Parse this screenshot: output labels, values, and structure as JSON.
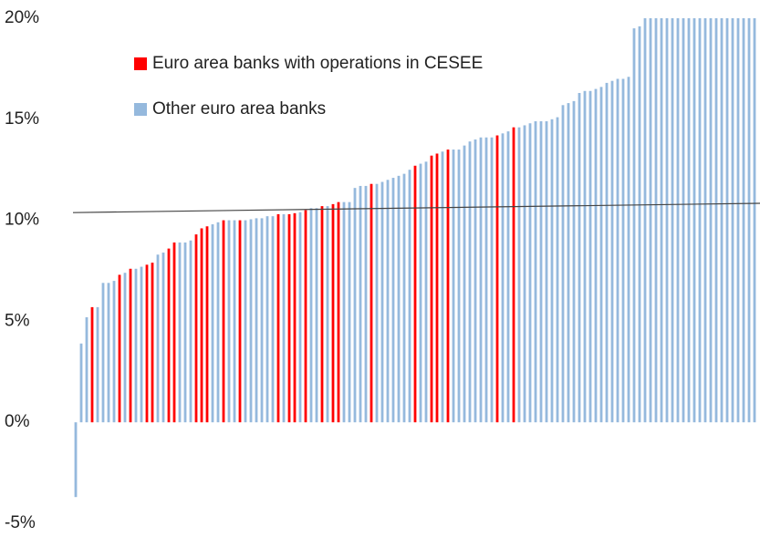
{
  "chart_data": {
    "type": "bar",
    "categories": [
      null,
      null,
      null,
      null,
      null,
      null,
      null,
      null,
      null,
      null,
      null,
      null,
      null,
      null,
      null,
      null,
      null,
      null,
      null,
      null,
      null,
      null,
      null,
      null,
      null,
      null,
      null,
      null,
      null,
      null,
      null,
      null,
      null,
      null,
      null,
      null,
      null,
      null,
      null,
      null,
      null,
      null,
      null,
      null,
      null,
      null,
      null,
      null,
      null,
      null,
      null,
      null,
      null,
      null,
      null,
      null,
      null,
      null,
      null,
      null,
      null,
      null,
      null,
      null,
      null,
      null,
      null,
      null,
      null,
      null,
      null,
      null,
      null,
      null,
      null,
      null,
      null,
      null,
      null,
      null,
      null,
      null,
      null,
      null,
      null,
      null,
      null,
      null,
      null,
      null,
      null,
      null,
      null,
      null,
      null,
      null,
      null,
      null,
      null,
      null,
      null,
      null,
      null,
      null,
      null,
      null,
      null,
      null,
      null,
      null,
      null,
      null,
      null,
      null,
      null,
      null,
      null,
      null,
      null,
      null,
      null,
      null,
      null,
      null,
      null
    ],
    "series": [
      {
        "name": "Euro area banks with operations in CESEE",
        "color": "#ff0000",
        "values": [
          null,
          null,
          null,
          5.7,
          null,
          null,
          null,
          null,
          7.3,
          null,
          7.6,
          null,
          null,
          7.8,
          7.9,
          null,
          null,
          8.6,
          8.9,
          null,
          null,
          null,
          9.3,
          9.6,
          9.7,
          null,
          null,
          10.0,
          null,
          null,
          10.0,
          null,
          null,
          null,
          null,
          null,
          null,
          10.3,
          null,
          10.3,
          10.35,
          null,
          10.5,
          null,
          null,
          10.7,
          null,
          10.8,
          10.9,
          null,
          null,
          null,
          null,
          null,
          11.8,
          null,
          null,
          null,
          null,
          null,
          null,
          null,
          12.7,
          null,
          null,
          13.2,
          13.3,
          null,
          13.5,
          null,
          null,
          null,
          null,
          null,
          null,
          null,
          null,
          14.2,
          null,
          null,
          14.6,
          null,
          null,
          null,
          null,
          null,
          null,
          null,
          null,
          null,
          null,
          null,
          null,
          null,
          null,
          null,
          null,
          null,
          null,
          null,
          null,
          null,
          null,
          null,
          null,
          null,
          null,
          null,
          null,
          null,
          null,
          null,
          null,
          null,
          null,
          null,
          null,
          null,
          null,
          null,
          null,
          null,
          null,
          null,
          null
        ]
      },
      {
        "name": "Other euro area banks",
        "color": "#95b9dd",
        "values": [
          -3.7,
          3.9,
          5.2,
          null,
          5.7,
          6.9,
          6.9,
          7.0,
          null,
          7.4,
          null,
          7.6,
          7.7,
          null,
          null,
          8.3,
          8.4,
          null,
          null,
          8.9,
          8.9,
          9.0,
          null,
          null,
          null,
          9.8,
          9.9,
          null,
          10.0,
          10.0,
          null,
          10.0,
          10.05,
          10.1,
          10.1,
          10.2,
          10.2,
          null,
          10.3,
          null,
          null,
          10.4,
          null,
          10.6,
          10.6,
          null,
          10.7,
          null,
          null,
          10.9,
          10.9,
          11.6,
          11.7,
          11.7,
          null,
          11.8,
          11.9,
          12.0,
          12.1,
          12.2,
          12.3,
          12.5,
          null,
          12.8,
          12.9,
          null,
          null,
          13.4,
          null,
          13.5,
          13.5,
          13.7,
          13.9,
          14.0,
          14.1,
          14.1,
          14.1,
          null,
          14.3,
          14.4,
          null,
          14.6,
          14.7,
          14.8,
          14.9,
          14.9,
          14.9,
          15.0,
          15.1,
          15.7,
          15.8,
          15.9,
          16.3,
          16.4,
          16.4,
          16.5,
          16.6,
          16.8,
          16.9,
          17.0,
          17.0,
          17.1,
          19.5,
          19.6,
          20,
          20,
          20,
          20,
          20,
          20,
          20,
          20,
          20,
          20,
          20,
          20,
          20,
          20,
          20,
          20,
          20,
          20,
          20,
          20,
          20
        ]
      }
    ],
    "trend_line": [
      10.38,
      10.84
    ],
    "ylim": [
      -5,
      20
    ],
    "yticks": [
      {
        "value": -5,
        "label": "-5%"
      },
      {
        "value": 0,
        "label": "0%"
      },
      {
        "value": 5,
        "label": "5%"
      },
      {
        "value": 10,
        "label": "10%"
      },
      {
        "value": 15,
        "label": "15%"
      },
      {
        "value": 20,
        "label": "20%"
      }
    ],
    "legend": "upper left"
  }
}
